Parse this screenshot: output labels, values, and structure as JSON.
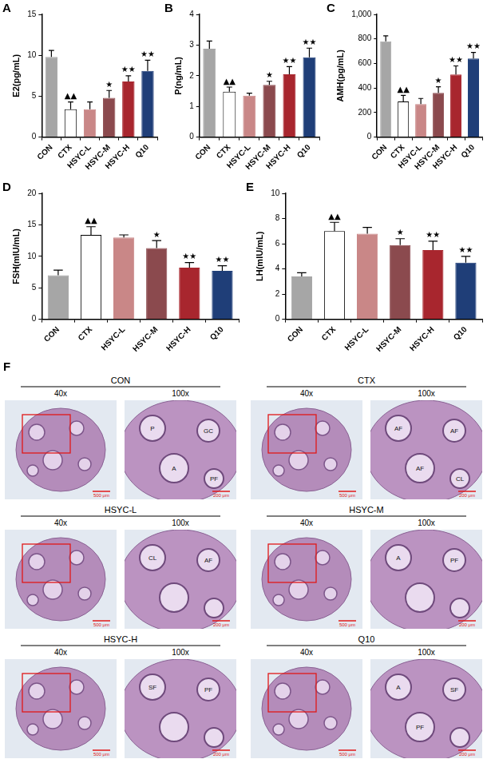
{
  "chart_data": [
    {
      "panel": "A",
      "type": "bar",
      "y_label": "E2(pg/mL)",
      "categories": [
        "CON",
        "CTX",
        "HSYC-L",
        "HSYC-M",
        "HSYC-H",
        "Q10"
      ],
      "values": [
        9.8,
        3.4,
        3.4,
        4.8,
        6.8,
        8.1
      ],
      "errors": [
        0.8,
        0.9,
        0.9,
        0.9,
        0.7,
        1.3
      ],
      "significance": [
        "",
        "▲▲",
        "",
        "★",
        "★★",
        "★★"
      ],
      "colors": [
        "#a6a6a6",
        "#ffffff",
        "#c98787",
        "#8b4a4e",
        "#a8262e",
        "#1f3e78"
      ],
      "ylim": [
        0,
        15
      ],
      "yticks": [
        0,
        5,
        10,
        15
      ],
      "grid": false
    },
    {
      "panel": "B",
      "type": "bar",
      "y_label": "P(ng/mL)",
      "categories": [
        "CON",
        "CTX",
        "HSYC-L",
        "HSYC-M",
        "HSYC-H",
        "Q10"
      ],
      "values": [
        2.88,
        1.48,
        1.35,
        1.7,
        2.05,
        2.6
      ],
      "errors": [
        0.25,
        0.15,
        0.08,
        0.12,
        0.25,
        0.3
      ],
      "significance": [
        "",
        "▲▲",
        "",
        "★",
        "★★",
        "★★"
      ],
      "colors": [
        "#a6a6a6",
        "#ffffff",
        "#c98787",
        "#8b4a4e",
        "#a8262e",
        "#1f3e78"
      ],
      "ylim": [
        0,
        4
      ],
      "yticks": [
        0,
        1,
        2,
        3,
        4
      ],
      "grid": false
    },
    {
      "panel": "C",
      "type": "bar",
      "y_label": "AMH(pg/mL)",
      "categories": [
        "CON",
        "CTX",
        "HSYC-L",
        "HSYC-M",
        "HSYC-H",
        "Q10"
      ],
      "values": [
        780,
        290,
        270,
        360,
        510,
        640
      ],
      "errors": [
        45,
        50,
        45,
        50,
        70,
        50
      ],
      "significance": [
        "",
        "▲▲",
        "",
        "★",
        "★★",
        "★★"
      ],
      "colors": [
        "#a6a6a6",
        "#ffffff",
        "#c98787",
        "#8b4a4e",
        "#a8262e",
        "#1f3e78"
      ],
      "ylim": [
        0,
        1000
      ],
      "yticks": [
        0,
        200,
        400,
        600,
        800,
        1000
      ],
      "grid": false
    },
    {
      "panel": "D",
      "type": "bar",
      "y_label": "FSH(mIU/mL)",
      "categories": [
        "CON",
        "CTX",
        "HSYC-L",
        "HSYC-M",
        "HSYC-H",
        "Q10"
      ],
      "values": [
        7.0,
        13.4,
        13.0,
        11.3,
        8.2,
        7.7
      ],
      "errors": [
        0.8,
        1.3,
        0.4,
        1.2,
        0.8,
        0.8
      ],
      "significance": [
        "",
        "▲▲",
        "",
        "★",
        "★★",
        "★★"
      ],
      "colors": [
        "#a6a6a6",
        "#ffffff",
        "#c98787",
        "#8b4a4e",
        "#a8262e",
        "#1f3e78"
      ],
      "ylim": [
        0,
        20
      ],
      "yticks": [
        0,
        5,
        10,
        15,
        20
      ],
      "grid": false
    },
    {
      "panel": "E",
      "type": "bar",
      "y_label": "LH(mIU/mL)",
      "categories": [
        "CON",
        "CTX",
        "HSYC-L",
        "HSYC-M",
        "HSYC-H",
        "Q10"
      ],
      "values": [
        3.4,
        7.0,
        6.8,
        5.9,
        5.5,
        4.5
      ],
      "errors": [
        0.3,
        0.7,
        0.5,
        0.5,
        0.7,
        0.5
      ],
      "significance": [
        "",
        "▲▲",
        "",
        "★",
        "★★",
        "★★"
      ],
      "colors": [
        "#a6a6a6",
        "#ffffff",
        "#c98787",
        "#8b4a4e",
        "#a8262e",
        "#1f3e78"
      ],
      "ylim": [
        0,
        10
      ],
      "yticks": [
        0,
        2,
        4,
        6,
        8,
        10
      ],
      "grid": false
    }
  ],
  "histology": {
    "panel": "F",
    "magnifications": [
      "40x",
      "100x"
    ],
    "scale_bars": [
      "500 μm",
      "200 μm"
    ],
    "groups": [
      {
        "title": "CON",
        "labels": [
          "P",
          "GC",
          "A",
          "PF"
        ]
      },
      {
        "title": "CTX",
        "labels": [
          "AF",
          "AF",
          "AF",
          "CL"
        ]
      },
      {
        "title": "HSYC-L",
        "labels": [
          "CL",
          "AF"
        ]
      },
      {
        "title": "HSYC-M",
        "labels": [
          "A",
          "PF"
        ]
      },
      {
        "title": "HSYC-H",
        "labels": [
          "SF",
          "PF"
        ]
      },
      {
        "title": "Q10",
        "labels": [
          "A",
          "SF",
          "PF"
        ]
      }
    ]
  }
}
